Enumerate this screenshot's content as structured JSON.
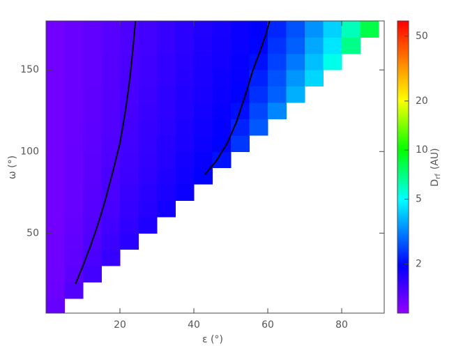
{
  "chart_data": {
    "type": "heatmap",
    "x_label": "ε (°)",
    "y_label": "ω (°)",
    "colorbar_label": {
      "main": "D",
      "sub": "rf",
      "unit": "(AU)"
    },
    "xlim": [
      0,
      91.5
    ],
    "ylim": [
      1,
      180
    ],
    "xticks": [
      20,
      40,
      60,
      80
    ],
    "yticks": [
      50,
      100,
      150
    ],
    "clim": [
      1,
      62
    ],
    "cticks": [
      2,
      5,
      10,
      20,
      50
    ],
    "clog": true,
    "colormap": "rainbow",
    "contour_color": "#000000",
    "x": [
      2.5,
      7.5,
      12.5,
      17.5,
      22.5,
      27.5,
      32.5,
      37.5,
      42.5,
      47.5,
      52.5,
      57.5,
      62.5,
      67.5,
      72.5,
      77.5,
      82.5,
      87.5
    ],
    "y": [
      5,
      15,
      25,
      35,
      45,
      55,
      65,
      75,
      85,
      95,
      105,
      115,
      125,
      135,
      145,
      155,
      165,
      175
    ],
    "z": [
      [
        1.24,
        null,
        null,
        null,
        null,
        null,
        null,
        null,
        null,
        null,
        null,
        null,
        null,
        null,
        null,
        null,
        null,
        null
      ],
      [
        1.21,
        1.36,
        null,
        null,
        null,
        null,
        null,
        null,
        null,
        null,
        null,
        null,
        null,
        null,
        null,
        null,
        null,
        null
      ],
      [
        1.2,
        1.3,
        1.45,
        null,
        null,
        null,
        null,
        null,
        null,
        null,
        null,
        null,
        null,
        null,
        null,
        null,
        null,
        null
      ],
      [
        1.19,
        1.28,
        1.4,
        1.55,
        null,
        null,
        null,
        null,
        null,
        null,
        null,
        null,
        null,
        null,
        null,
        null,
        null,
        null
      ],
      [
        1.19,
        1.26,
        1.37,
        1.5,
        1.64,
        null,
        null,
        null,
        null,
        null,
        null,
        null,
        null,
        null,
        null,
        null,
        null,
        null
      ],
      [
        1.18,
        1.25,
        1.35,
        1.47,
        1.59,
        1.73,
        null,
        null,
        null,
        null,
        null,
        null,
        null,
        null,
        null,
        null,
        null,
        null
      ],
      [
        1.18,
        1.24,
        1.33,
        1.43,
        1.55,
        1.67,
        1.8,
        null,
        null,
        null,
        null,
        null,
        null,
        null,
        null,
        null,
        null,
        null
      ],
      [
        1.18,
        1.24,
        1.32,
        1.41,
        1.53,
        1.64,
        1.76,
        1.88,
        null,
        null,
        null,
        null,
        null,
        null,
        null,
        null,
        null,
        null
      ],
      [
        1.18,
        1.23,
        1.31,
        1.4,
        1.5,
        1.61,
        1.72,
        1.84,
        1.96,
        null,
        null,
        null,
        null,
        null,
        null,
        null,
        null,
        null
      ],
      [
        1.18,
        1.23,
        1.3,
        1.38,
        1.48,
        1.58,
        1.68,
        1.8,
        1.91,
        2.1,
        null,
        null,
        null,
        null,
        null,
        null,
        null,
        null
      ],
      [
        1.18,
        1.23,
        1.29,
        1.37,
        1.46,
        1.56,
        1.66,
        1.76,
        1.87,
        1.98,
        2.41,
        null,
        null,
        null,
        null,
        null,
        null,
        null
      ],
      [
        1.18,
        1.22,
        1.29,
        1.36,
        1.45,
        1.54,
        1.63,
        1.74,
        1.84,
        1.95,
        2.24,
        2.72,
        null,
        null,
        null,
        null,
        null,
        null
      ],
      [
        1.17,
        1.22,
        1.28,
        1.36,
        1.43,
        1.53,
        1.61,
        1.71,
        1.81,
        1.91,
        2.07,
        2.54,
        3.23,
        null,
        null,
        null,
        null,
        null
      ],
      [
        1.17,
        1.22,
        1.28,
        1.35,
        1.42,
        1.51,
        1.6,
        1.69,
        1.78,
        1.88,
        1.98,
        2.35,
        2.8,
        3.75,
        null,
        null,
        null,
        null
      ],
      [
        1.17,
        1.22,
        1.27,
        1.34,
        1.41,
        1.49,
        1.58,
        1.67,
        1.76,
        1.86,
        1.95,
        2.22,
        2.65,
        3.41,
        4.33,
        null,
        null,
        null
      ],
      [
        1.17,
        1.22,
        1.27,
        1.34,
        1.4,
        1.48,
        1.57,
        1.65,
        1.74,
        1.83,
        1.92,
        2.08,
        2.5,
        3.06,
        3.96,
        5.28,
        null,
        null
      ],
      [
        1.17,
        1.22,
        1.26,
        1.33,
        1.39,
        1.47,
        1.55,
        1.63,
        1.72,
        1.81,
        1.9,
        1.99,
        2.38,
        2.79,
        3.65,
        4.57,
        6.93,
        null
      ],
      [
        1.17,
        1.22,
        1.26,
        1.32,
        1.38,
        1.46,
        1.54,
        1.62,
        1.71,
        1.79,
        1.89,
        1.97,
        2.26,
        2.66,
        3.36,
        4.23,
        6.03,
        8.33
      ]
    ],
    "contours": [
      {
        "x": [
          8,
          10,
          12,
          14,
          16,
          18,
          20,
          21.5,
          22.7,
          23.6,
          24.2
        ],
        "y": [
          19,
          30,
          42,
          55,
          70,
          87,
          105,
          125,
          145,
          165,
          180
        ]
      },
      {
        "x": [
          43,
          46,
          49,
          51.5,
          54,
          56,
          58,
          59.5,
          60.5
        ],
        "y": [
          86,
          94,
          105,
          118,
          135,
          150,
          162,
          172,
          180
        ]
      }
    ]
  }
}
